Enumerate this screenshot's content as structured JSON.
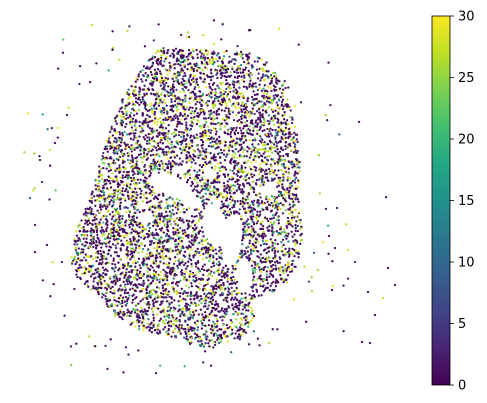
{
  "chart_data": {
    "type": "scatter",
    "title": "",
    "xlabel": "",
    "ylabel": "",
    "axes_visible": false,
    "colormap": "viridis",
    "colorbar": {
      "range": [
        0,
        30
      ],
      "ticks": [
        0,
        5,
        10,
        15,
        20,
        25,
        30
      ],
      "tick_labels": [
        "0",
        "5",
        "10",
        "15",
        "20",
        "25",
        "30"
      ],
      "placement": "right"
    },
    "point_count_approx": 6000,
    "value_distribution": "mixed, most points near 0 (dark purple) with many near 25-30 (yellow) and scattered mid values",
    "cloud_description": "dense roughly circular point cloud (tissue section) with irregular holes and a sparse fringe of outlier points",
    "colors": {
      "low": "#440154",
      "high": "#fde725"
    }
  }
}
